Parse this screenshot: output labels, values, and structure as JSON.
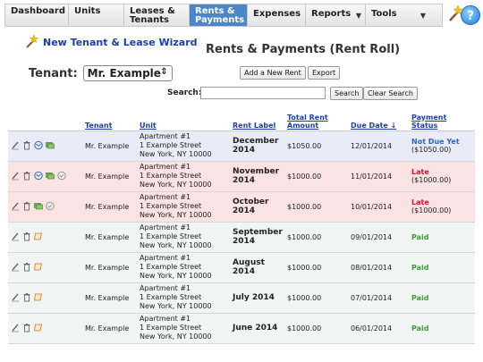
{
  "nav": {
    "items": [
      {
        "label": "Dashboard",
        "active": false,
        "dropdown": false
      },
      {
        "label": "Units",
        "active": false,
        "dropdown": false
      },
      {
        "label": "Leases & Tenants",
        "active": false,
        "dropdown": false
      },
      {
        "label": "Rents & Payments",
        "active": true,
        "dropdown": false
      },
      {
        "label": "Expenses",
        "active": false,
        "dropdown": false
      },
      {
        "label": "Reports",
        "active": false,
        "dropdown": true
      },
      {
        "label": "Tools",
        "active": false,
        "dropdown": true
      }
    ],
    "help_label": "?"
  },
  "wizard": {
    "label": "New Tenant & Lease Wizard"
  },
  "page_title": "Rents & Payments (Rent Roll)",
  "tenant": {
    "label": "Tenant:",
    "selected": "Mr. Example"
  },
  "buttons": {
    "add_rent": "Add a New Rent",
    "export": "Export",
    "search": "Search",
    "clear_search": "Clear Search"
  },
  "search": {
    "label": "Search:",
    "value": ""
  },
  "table": {
    "headers": [
      "Tenant",
      "Unit",
      "Rent Label",
      "Total Rent Amount",
      "Due Date ↓",
      "Payment Status"
    ],
    "rows": [
      {
        "tenant": "Mr. Example",
        "unit": [
          "Apartment #1",
          "1 Example Street",
          "New York, NY 10000"
        ],
        "label": "December 2014",
        "amount": "$1050.00",
        "due": "12/01/2014",
        "status": "Not Due Yet",
        "status_amount": "($1050.00)",
        "kind": "notdue",
        "icons": [
          "edit",
          "delete",
          "email",
          "money"
        ]
      },
      {
        "tenant": "Mr. Example",
        "unit": [
          "Apartment #1",
          "1 Example Street",
          "New York, NY 10000"
        ],
        "label": "November 2014",
        "amount": "$1000.00",
        "due": "11/01/2014",
        "status": "Late",
        "status_amount": "($1000.00)",
        "kind": "late",
        "icons": [
          "edit",
          "delete",
          "email",
          "money",
          "note"
        ]
      },
      {
        "tenant": "Mr. Example",
        "unit": [
          "Apartment #1",
          "1 Example Street",
          "New York, NY 10000"
        ],
        "label": "October 2014",
        "amount": "$1000.00",
        "due": "10/01/2014",
        "status": "Late",
        "status_amount": "($1000.00)",
        "kind": "late",
        "icons": [
          "edit",
          "delete",
          "money",
          "note"
        ]
      },
      {
        "tenant": "Mr. Example",
        "unit": [
          "Apartment #1",
          "1 Example Street",
          "New York, NY 10000"
        ],
        "label": "September 2014",
        "amount": "$1000.00",
        "due": "09/01/2014",
        "status": "Paid",
        "status_amount": "",
        "kind": "paid",
        "icons": [
          "edit",
          "delete",
          "receipt"
        ]
      },
      {
        "tenant": "Mr. Example",
        "unit": [
          "Apartment #1",
          "1 Example Street",
          "New York, NY 10000"
        ],
        "label": "August 2014",
        "amount": "$1000.00",
        "due": "08/01/2014",
        "status": "Paid",
        "status_amount": "",
        "kind": "paid",
        "icons": [
          "edit",
          "delete",
          "receipt"
        ]
      },
      {
        "tenant": "Mr. Example",
        "unit": [
          "Apartment #1",
          "1 Example Street",
          "New York, NY 10000"
        ],
        "label": "July 2014",
        "amount": "$1000.00",
        "due": "07/01/2014",
        "status": "Paid",
        "status_amount": "",
        "kind": "paid",
        "icons": [
          "edit",
          "delete",
          "receipt"
        ]
      },
      {
        "tenant": "Mr. Example",
        "unit": [
          "Apartment #1",
          "1 Example Street",
          "New York, NY 10000"
        ],
        "label": "June 2014",
        "amount": "$1000.00",
        "due": "06/01/2014",
        "status": "Paid",
        "status_amount": "",
        "kind": "paid",
        "icons": [
          "edit",
          "delete",
          "receipt"
        ]
      }
    ]
  },
  "colors": {
    "active_tab": "#4a86c8",
    "link": "#1a3fa8",
    "late": "#d0142c",
    "paid": "#3e9a3a",
    "not_due": "#2c63c4"
  }
}
